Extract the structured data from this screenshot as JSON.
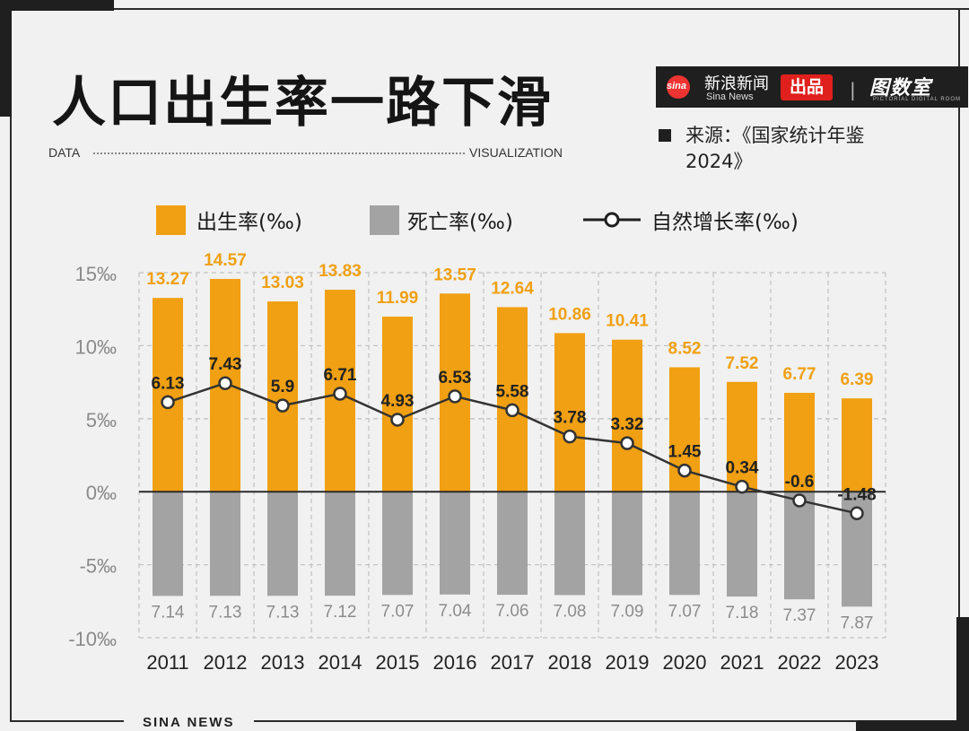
{
  "header": {
    "title": "人口出生率一路下滑",
    "subtitle_left": "DATA",
    "subtitle_right": "VISUALIZATION"
  },
  "brand": {
    "logo_text": "sina",
    "name_cn": "新浪新闻",
    "name_en": "Sina News",
    "badge": "出品",
    "separator": "|",
    "studio": "图数室",
    "studio_en": "PICTORIAL DIGITAL ROOM"
  },
  "source": {
    "text": "来源：《国家统计年鉴2024》"
  },
  "legend": {
    "birth": "出生率(‰)",
    "death": "死亡率(‰)",
    "growth": "自然增长率(‰)"
  },
  "footer": {
    "text": "SINA NEWS"
  },
  "colors": {
    "birth": "#f0a012",
    "death": "#a3a3a3",
    "growth_line": "#333333",
    "birth_label": "#f0a012",
    "death_label": "#8c8c8c"
  },
  "chart_data": {
    "type": "bar",
    "categories": [
      "2011",
      "2012",
      "2013",
      "2014",
      "2015",
      "2016",
      "2017",
      "2018",
      "2019",
      "2020",
      "2021",
      "2022",
      "2023"
    ],
    "series": [
      {
        "name": "出生率(‰)",
        "type": "bar",
        "values": [
          13.27,
          14.57,
          13.03,
          13.83,
          11.99,
          13.57,
          12.64,
          10.86,
          10.41,
          8.52,
          7.52,
          6.77,
          6.39
        ]
      },
      {
        "name": "死亡率(‰)",
        "type": "bar",
        "values": [
          7.14,
          7.13,
          7.13,
          7.12,
          7.07,
          7.04,
          7.06,
          7.08,
          7.09,
          7.07,
          7.18,
          7.37,
          7.87
        ],
        "drawn_downward": true
      },
      {
        "name": "自然增长率(‰)",
        "type": "line",
        "values": [
          6.13,
          7.43,
          5.9,
          6.71,
          4.93,
          6.53,
          5.58,
          3.78,
          3.32,
          1.45,
          0.34,
          -0.6,
          -1.48
        ]
      }
    ],
    "birth_labels": [
      "13.27",
      "14.57",
      "13.03",
      "13.83",
      "11.99",
      "13.57",
      "12.64",
      "10.86",
      "10.41",
      "8.52",
      "7.52",
      "6.77",
      "6.39"
    ],
    "death_labels": [
      "7.14",
      "7.13",
      "7.13",
      "7.12",
      "7.07",
      "7.04",
      "7.06",
      "7.08",
      "7.09",
      "7.07",
      "7.18",
      "7.37",
      "7.87"
    ],
    "growth_labels": [
      "6.13",
      "7.43",
      "5.9",
      "6.71",
      "4.93",
      "6.53",
      "5.58",
      "3.78",
      "3.32",
      "1.45",
      "0.34",
      "-0.6",
      "-1.48"
    ],
    "y_ticks": [
      15,
      10,
      5,
      0,
      -5,
      -10
    ],
    "y_tick_labels": [
      "15‰",
      "10‰",
      "5‰",
      "0‰",
      "-5‰",
      "-10‰"
    ],
    "ylim": [
      -10,
      15
    ],
    "grid": true,
    "legend_position": "top"
  }
}
